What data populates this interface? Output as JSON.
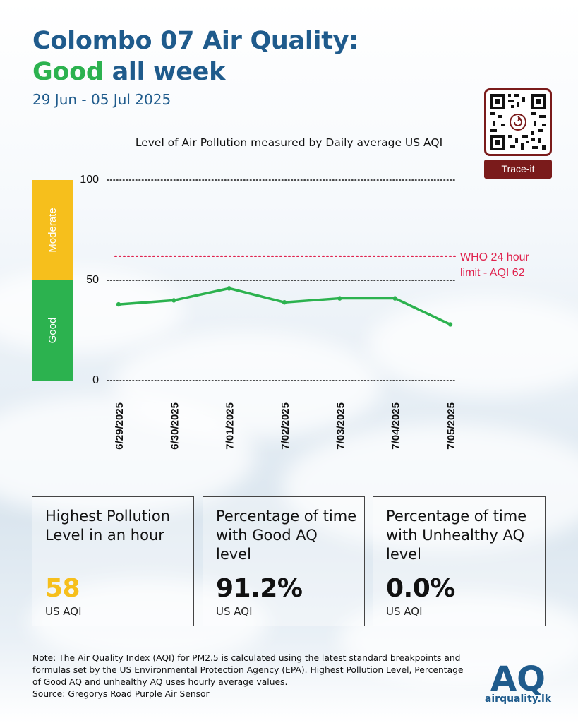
{
  "header": {
    "title_line1": "Colombo 07 Air Quality:",
    "title_good": "Good",
    "title_rest": " all week",
    "date_range": "29 Jun - 05 Jul 2025"
  },
  "qr": {
    "label": "Trace-it",
    "icon": "qr-code-icon"
  },
  "chart_data": {
    "type": "line",
    "title": "Level of Air Pollution measured by Daily average US AQI",
    "categories": [
      "6/29/2025",
      "6/30/2025",
      "7/01/2025",
      "7/02/2025",
      "7/03/2025",
      "7/04/2025",
      "7/05/2025"
    ],
    "series": [
      {
        "values": [
          38,
          40,
          46,
          39,
          41,
          41,
          28
        ],
        "color": "#2cb24f"
      }
    ],
    "ylim": [
      0,
      100
    ],
    "yticks": [
      0,
      50,
      100
    ],
    "grid": "dotted horizontal at ticks",
    "bands": [
      {
        "label": "Good",
        "from": 0,
        "to": 50,
        "color": "#2cb24f"
      },
      {
        "label": "Moderate",
        "from": 50,
        "to": 100,
        "color": "#f6bf1c"
      }
    ],
    "reference_line": {
      "value": 62,
      "label_lines": [
        "WHO 24 hour",
        "limit - AQI 62"
      ],
      "color": "#e0234e"
    }
  },
  "cards": [
    {
      "title": "Highest Pollution Level in an hour",
      "value": "58",
      "unit": "US AQI",
      "value_color": "#f6bf1c"
    },
    {
      "title": "Percentage of time with Good AQ level",
      "value": "91.2%",
      "unit": "US AQI",
      "value_color": "#111111"
    },
    {
      "title": "Percentage of time with Unhealthy AQ level",
      "value": "0.0%",
      "unit": "US AQI",
      "value_color": "#111111"
    }
  ],
  "note": {
    "text": "Note: The Air Quality Index (AQI) for PM2.5 is calculated using the latest standard breakpoints and formulas set by the US Environmental Protection Agency (EPA). Highest Pollution Level, Percentage of Good AQ and unhealthy AQ uses hourly average values.",
    "source": "Source: Gregorys Road Purple Air Sensor"
  },
  "logo": {
    "mark": "AQ",
    "text": "airquality.lk",
    "icon": "airquality-logo-icon"
  },
  "colors": {
    "brand_blue": "#1f5b8c",
    "good_green": "#2cb24f",
    "moderate_yellow": "#f6bf1c",
    "who_red": "#e0234e",
    "qr_maroon": "#7a1b1b"
  }
}
